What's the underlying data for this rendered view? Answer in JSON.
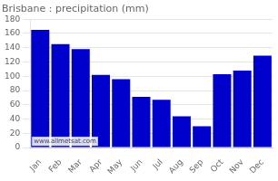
{
  "chart_data": {
    "type": "bar",
    "title": "Brisbane : precipitation (mm)",
    "categories": [
      "Jan",
      "Feb",
      "Mar",
      "Apr",
      "May",
      "Jun",
      "Jul",
      "Aug",
      "Sep",
      "Oct",
      "Nov",
      "Dec"
    ],
    "values": [
      165,
      145,
      138,
      102,
      96,
      71,
      67,
      44,
      30,
      103,
      108,
      129
    ],
    "color": "#0000cc",
    "ylim": [
      0,
      180
    ],
    "yticks": [
      0,
      20,
      40,
      60,
      80,
      100,
      120,
      140,
      160,
      180
    ],
    "grid": true,
    "annotations": [
      "www.allmetsat.com"
    ]
  }
}
